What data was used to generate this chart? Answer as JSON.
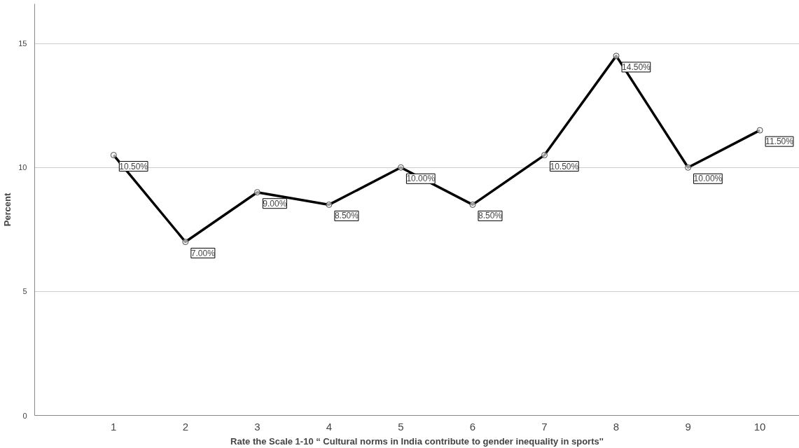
{
  "chart_data": {
    "type": "line",
    "xlabel": "Rate the Scale 1-10 “ Cultural norms in India contribute to gender inequality in sports''",
    "ylabel": "Percent",
    "categories": [
      "1",
      "2",
      "3",
      "4",
      "5",
      "6",
      "7",
      "8",
      "9",
      "10"
    ],
    "series": [
      {
        "color": "#000000",
        "values": [
          10.5,
          7,
          9,
          8.5,
          10,
          8.5,
          10.5,
          14.5,
          10,
          11.5
        ],
        "value_labels": [
          "10.50%",
          "7.00%",
          "9.00%",
          "8.50%",
          "10.00%",
          "8.50%",
          "10.50%",
          "14.50%",
          "10.00%",
          "11.50%"
        ]
      }
    ],
    "ylim": [
      0,
      16.6
    ],
    "yticks": [
      0,
      5,
      10,
      15
    ],
    "grid": "y",
    "marker": "circle",
    "line_style": "solid"
  }
}
